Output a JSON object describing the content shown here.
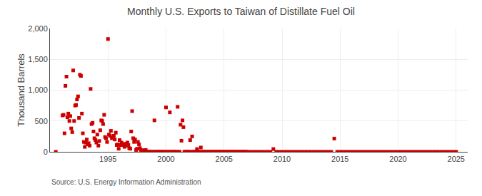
{
  "chart_data": {
    "type": "scatter",
    "title": "Monthly U.S. Exports to Taiwan of Distillate Fuel Oil",
    "ylabel": "Thousand Barrels",
    "source": "Source: U.S. Energy Information Administration",
    "color": "#cc0000",
    "marker": "square",
    "grid": true,
    "xlim": [
      1990.0,
      2026.0
    ],
    "ylim": [
      0,
      2000
    ],
    "xticks": [
      1995,
      2000,
      2005,
      2010,
      2015,
      2020,
      2025
    ],
    "yticks": [
      0,
      500,
      {
        "value": 1000,
        "label": "1,000"
      },
      {
        "value": 1500,
        "label": "1,500"
      },
      {
        "value": 2000,
        "label": "2,000"
      }
    ],
    "x": [
      1990.5,
      1991.08,
      1991.17,
      1991.25,
      1991.33,
      1991.42,
      1991.5,
      1991.58,
      1991.67,
      1991.75,
      1991.83,
      1991.92,
      1992.0,
      1992.08,
      1992.17,
      1992.25,
      1992.33,
      1992.42,
      1992.5,
      1992.58,
      1992.67,
      1992.75,
      1992.83,
      1992.92,
      1993.0,
      1993.08,
      1993.17,
      1993.25,
      1993.33,
      1993.42,
      1993.5,
      1993.58,
      1993.67,
      1993.75,
      1993.83,
      1993.92,
      1994.0,
      1994.08,
      1994.17,
      1994.25,
      1994.33,
      1994.42,
      1994.5,
      1994.58,
      1994.67,
      1994.75,
      1994.83,
      1994.92,
      1995.0,
      1995.08,
      1995.17,
      1995.25,
      1995.33,
      1995.42,
      1995.5,
      1995.58,
      1995.67,
      1995.75,
      1995.83,
      1995.92,
      1996.0,
      1996.08,
      1996.17,
      1996.25,
      1996.33,
      1996.42,
      1996.5,
      1996.58,
      1996.67,
      1996.75,
      1996.83,
      1996.92,
      1997.0,
      1997.08,
      1997.17,
      1997.25,
      1997.33,
      1997.42,
      1997.5,
      1997.58,
      1997.67,
      1997.75,
      1997.83,
      1997.92,
      1998.0,
      1998.08,
      1998.17,
      1998.25,
      1998.33,
      1998.42,
      1998.5,
      1998.58,
      1998.67,
      1998.75,
      1998.83,
      1998.92,
      1999.0,
      1999.08,
      1999.17,
      1999.25,
      1999.33,
      1999.42,
      1999.5,
      1999.58,
      1999.67,
      1999.75,
      1999.83,
      1999.92,
      2000.0,
      2000.08,
      2000.17,
      2000.25,
      2000.33,
      2000.42,
      2000.5,
      2000.58,
      2000.67,
      2000.75,
      2000.83,
      2000.92,
      2001.0,
      2001.08,
      2001.17,
      2001.25,
      2001.33,
      2001.42,
      2001.5,
      2001.58,
      2001.67,
      2001.75,
      2001.83,
      2001.92,
      2002.0,
      2002.08,
      2002.17,
      2002.25,
      2002.33,
      2002.42,
      2002.5,
      2002.58,
      2002.67,
      2002.75,
      2002.83,
      2002.92,
      2003.0,
      2003.08,
      2003.17,
      2003.25,
      2003.33,
      2003.42,
      2003.5,
      2003.58,
      2003.67,
      2003.75,
      2003.83,
      2003.92,
      2004.0,
      2004.08,
      2004.17,
      2004.25,
      2004.33,
      2004.42,
      2004.5,
      2004.58,
      2004.67,
      2004.75,
      2004.83,
      2004.92,
      2005.0,
      2005.08,
      2005.17,
      2005.25,
      2005.33,
      2005.42,
      2005.5,
      2005.58,
      2005.67,
      2005.75,
      2005.83,
      2005.92,
      2006.0,
      2006.08,
      2006.17,
      2006.25,
      2006.33,
      2006.42,
      2006.5,
      2006.58,
      2006.67,
      2006.75,
      2006.83,
      2006.92,
      2007.0,
      2007.25,
      2007.5,
      2007.75,
      2008.0,
      2008.25,
      2008.5,
      2008.75,
      2009.0,
      2009.25,
      2009.5,
      2009.75,
      2010.0,
      2010.25,
      2010.5,
      2010.75,
      2011.0,
      2011.25,
      2011.5,
      2011.75,
      2012.0,
      2012.25,
      2012.5,
      2012.75,
      2013.0,
      2013.25,
      2013.5,
      2013.75,
      2014.0,
      2014.25,
      2014.5,
      2014.75,
      2015.0,
      2015.25,
      2015.5,
      2015.75,
      2016.0,
      2016.25,
      2016.5,
      2016.75,
      2017.0,
      2017.25,
      2017.5,
      2017.75,
      2018.0,
      2018.25,
      2018.5,
      2018.75,
      2019.0,
      2019.25,
      2019.5,
      2019.75,
      2020.0,
      2020.25,
      2020.5,
      2020.75,
      2021.0,
      2021.25,
      2021.5,
      2021.75,
      2022.0,
      2022.25,
      2022.5,
      2022.75,
      2023.0,
      2023.25,
      2023.5,
      2023.75,
      2024.0,
      2024.25,
      2024.5,
      2024.75,
      2025.0
    ],
    "values": [
      0,
      590,
      600,
      300,
      1070,
      1220,
      560,
      620,
      500,
      580,
      380,
      320,
      1320,
      500,
      750,
      760,
      850,
      900,
      550,
      1250,
      1230,
      620,
      300,
      160,
      80,
      150,
      200,
      120,
      140,
      100,
      1020,
      450,
      470,
      330,
      220,
      190,
      150,
      280,
      100,
      175,
      350,
      510,
      500,
      450,
      600,
      240,
      220,
      160,
      1830,
      280,
      260,
      340,
      220,
      230,
      260,
      200,
      310,
      110,
      120,
      50,
      190,
      110,
      150,
      110,
      120,
      80,
      130,
      100,
      150,
      110,
      60,
      50,
      330,
      660,
      220,
      160,
      200,
      30,
      50,
      160,
      120,
      60,
      30,
      20,
      20,
      20,
      25,
      30,
      0,
      0,
      0,
      0,
      0,
      0,
      0,
      0,
      510,
      0,
      0,
      0,
      0,
      0,
      0,
      0,
      0,
      0,
      0,
      0,
      720,
      0,
      0,
      0,
      640,
      0,
      0,
      0,
      0,
      0,
      0,
      0,
      730,
      0,
      0,
      440,
      180,
      510,
      400,
      0,
      0,
      0,
      0,
      0,
      0,
      190,
      0,
      250,
      0,
      0,
      0,
      0,
      45,
      0,
      0,
      0,
      70,
      0,
      0,
      0,
      0,
      0,
      0,
      0,
      0,
      0,
      0,
      0,
      0,
      0,
      0,
      0,
      0,
      0,
      0,
      0,
      0,
      0,
      0,
      0,
      0,
      0,
      0,
      0,
      0,
      0,
      0,
      0,
      0,
      0,
      0,
      0,
      0,
      0,
      0,
      0,
      0,
      0,
      0,
      0,
      0,
      0,
      0,
      0,
      0,
      0,
      0,
      0,
      0,
      0,
      0,
      0,
      0,
      45,
      0,
      0,
      0,
      0,
      0,
      0,
      0,
      0,
      0,
      0,
      0,
      0,
      0,
      0,
      0,
      0,
      0,
      0,
      0,
      0,
      215,
      0,
      0,
      0,
      0,
      0,
      0,
      0,
      0,
      0,
      0,
      0,
      0,
      0,
      0,
      0,
      0,
      0,
      0,
      0,
      0,
      0,
      0,
      0,
      0,
      0,
      0,
      0,
      0,
      0,
      0,
      0,
      0,
      0,
      0,
      0,
      0,
      0,
      0,
      0,
      0,
      0,
      0
    ]
  }
}
